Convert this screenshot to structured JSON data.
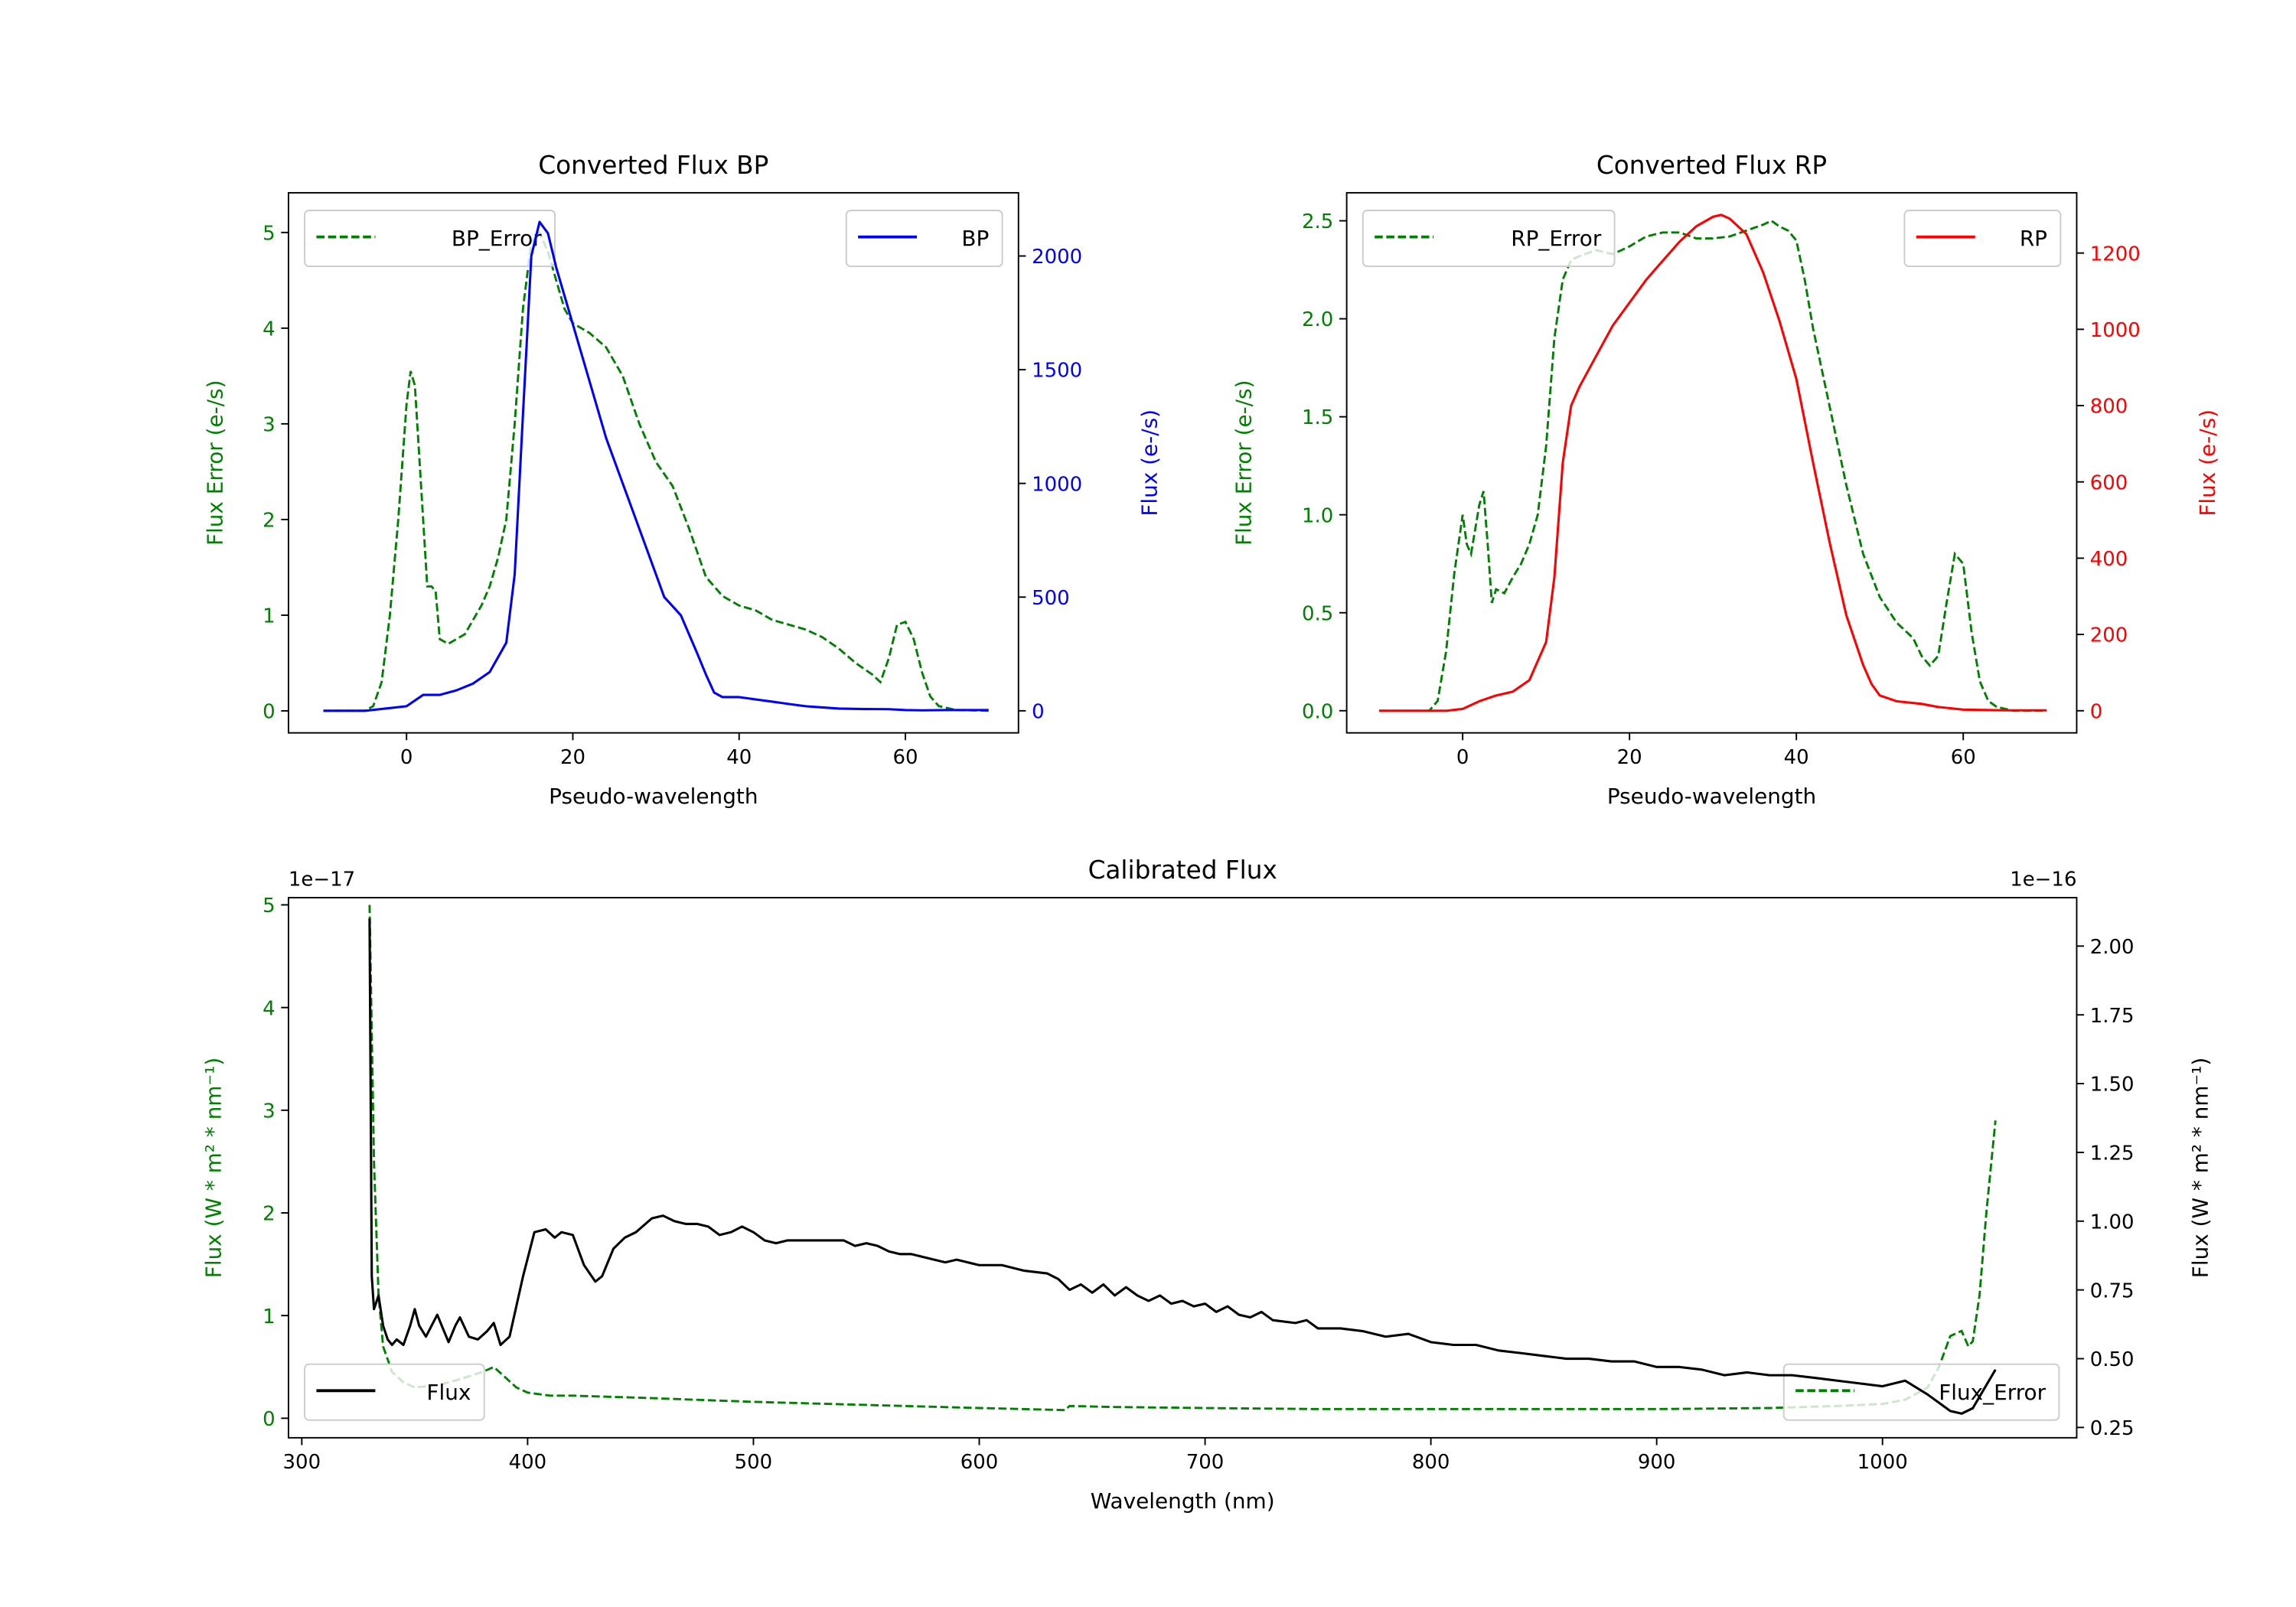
{
  "colors": {
    "error": "#008000",
    "bp": "#0000ff",
    "rp": "#ff0000",
    "flux": "#000000"
  },
  "chart_data": [
    {
      "id": "bp",
      "type": "line",
      "title": "Converted Flux BP",
      "xlabel": "Pseudo-wavelength",
      "ylabel_left": "Flux Error (e-/s)",
      "ylabel_right": "Flux (e-/s)",
      "xlim": [
        -14.2,
        73.6
      ],
      "ylim_left": [
        -0.23,
        5.415
      ],
      "ylim_right": [
        -97,
        2278
      ],
      "xticks": [
        "0",
        "20",
        "40",
        "60"
      ],
      "yticks_left": [
        "0",
        "1",
        "2",
        "3",
        "4",
        "5"
      ],
      "yticks_right": [
        "0",
        "500",
        "1000",
        "1500",
        "2000"
      ],
      "legend_left": {
        "label": "BP_Error",
        "placement": "upper left"
      },
      "legend_right": {
        "label": "BP",
        "placement": "upper right"
      },
      "series_left": {
        "name": "BP_Error",
        "style": "dashed",
        "x": [
          -10,
          -5,
          -4,
          -3,
          -2,
          -1,
          0,
          0.5,
          1,
          2,
          2.5,
          3,
          3.5,
          4,
          5,
          6,
          7,
          8,
          9,
          10,
          11,
          12,
          13,
          14,
          15,
          16,
          17,
          18,
          19,
          20,
          22,
          24,
          26,
          28,
          30,
          32,
          34,
          36,
          38,
          40,
          42,
          44,
          46,
          48,
          50,
          52,
          54,
          56,
          57,
          58,
          59,
          60,
          61,
          62,
          63,
          64,
          66,
          70
        ],
        "y": [
          0,
          0,
          0.05,
          0.3,
          1,
          2,
          3.2,
          3.55,
          3.4,
          2,
          1.3,
          1.3,
          1.25,
          0.75,
          0.7,
          0.75,
          0.8,
          0.95,
          1.1,
          1.3,
          1.6,
          2,
          3,
          4.2,
          4.9,
          5.0,
          4.8,
          4.5,
          4.2,
          4.05,
          3.95,
          3.8,
          3.5,
          3.0,
          2.6,
          2.35,
          1.9,
          1.4,
          1.2,
          1.1,
          1.05,
          0.95,
          0.9,
          0.85,
          0.77,
          0.65,
          0.5,
          0.38,
          0.3,
          0.55,
          0.9,
          0.93,
          0.75,
          0.4,
          0.15,
          0.05,
          0.01,
          0
        ]
      },
      "series_right": {
        "name": "BP",
        "style": "solid",
        "x": [
          -10,
          -5,
          0,
          2,
          4,
          6,
          8,
          10,
          12,
          13,
          14,
          15,
          16,
          17,
          18,
          20,
          22,
          24,
          26,
          28,
          30,
          31,
          33,
          35,
          36,
          37,
          38,
          40,
          42,
          44,
          46,
          48,
          50,
          52,
          55,
          58,
          60,
          62,
          65,
          70
        ],
        "y": [
          0,
          0,
          20,
          70,
          70,
          90,
          120,
          170,
          300,
          600,
          1300,
          2000,
          2150,
          2100,
          1950,
          1700,
          1450,
          1200,
          1000,
          800,
          600,
          500,
          420,
          250,
          160,
          80,
          60,
          60,
          50,
          40,
          30,
          20,
          15,
          10,
          8,
          7,
          3,
          2,
          3,
          3
        ]
      }
    },
    {
      "id": "rp",
      "type": "line",
      "title": "Converted Flux RP",
      "xlabel": "Pseudo-wavelength",
      "ylabel_left": "Flux Error (e-/s)",
      "ylabel_right": "Flux (e-/s)",
      "xlim": [
        -13.9,
        73.6
      ],
      "ylim_left": [
        -0.113,
        2.643
      ],
      "ylim_right": [
        -58,
        1358
      ],
      "xticks": [
        "0",
        "20",
        "40",
        "60"
      ],
      "yticks_left": [
        "0.0",
        "0.5",
        "1.0",
        "1.5",
        "2.0",
        "2.5"
      ],
      "yticks_right": [
        "0",
        "200",
        "400",
        "600",
        "800",
        "1000",
        "1200"
      ],
      "legend_left": {
        "label": "RP_Error",
        "placement": "upper left"
      },
      "legend_right": {
        "label": "RP",
        "placement": "upper right"
      },
      "series_left": {
        "name": "RP_Error",
        "style": "dashed",
        "x": [
          -10,
          -4,
          -3,
          -2,
          -1,
          0,
          0.5,
          1,
          2,
          2.5,
          3,
          3.5,
          4,
          5,
          6,
          7,
          8,
          9,
          10,
          11,
          12,
          13,
          14,
          16,
          18,
          20,
          22,
          24,
          26,
          28,
          30,
          32,
          34,
          36,
          37,
          38,
          39,
          40,
          41,
          42,
          44,
          46,
          48,
          50,
          52,
          54,
          55,
          56,
          57,
          58,
          59,
          60,
          61,
          62,
          63,
          64,
          66,
          70
        ],
        "y": [
          0,
          0,
          0.05,
          0.3,
          0.7,
          1.0,
          0.85,
          0.8,
          1.05,
          1.12,
          0.85,
          0.55,
          0.62,
          0.6,
          0.68,
          0.75,
          0.85,
          1.0,
          1.35,
          1.9,
          2.2,
          2.3,
          2.32,
          2.35,
          2.33,
          2.37,
          2.42,
          2.44,
          2.44,
          2.41,
          2.41,
          2.42,
          2.45,
          2.48,
          2.5,
          2.47,
          2.45,
          2.4,
          2.2,
          1.95,
          1.55,
          1.15,
          0.8,
          0.58,
          0.45,
          0.37,
          0.28,
          0.23,
          0.28,
          0.55,
          0.8,
          0.75,
          0.4,
          0.15,
          0.05,
          0.02,
          0,
          0
        ]
      },
      "series_right": {
        "name": "RP",
        "style": "solid",
        "x": [
          -10,
          -2,
          0,
          2,
          4,
          6,
          8,
          10,
          11,
          12,
          13,
          14,
          16,
          18,
          20,
          22,
          24,
          26,
          28,
          30,
          31,
          32,
          34,
          36,
          38,
          40,
          42,
          44,
          46,
          48,
          49,
          50,
          52,
          55,
          57,
          60,
          65,
          70
        ],
        "y": [
          0,
          0,
          5,
          25,
          40,
          50,
          80,
          180,
          350,
          650,
          800,
          850,
          930,
          1010,
          1070,
          1130,
          1180,
          1230,
          1270,
          1295,
          1300,
          1290,
          1250,
          1150,
          1020,
          870,
          650,
          440,
          250,
          120,
          70,
          40,
          25,
          18,
          10,
          3,
          1,
          1
        ]
      }
    },
    {
      "id": "cal",
      "type": "line",
      "title": "Calibrated Flux",
      "xlabel": "Wavelength (nm)",
      "ylabel_left": "Flux (W * m² * nm⁻¹)",
      "ylabel_right": "Flux (W * m² * nm⁻¹)",
      "offset_left": "1e−17",
      "offset_right": "1e−16",
      "xlim": [
        294.1,
        1086
      ],
      "ylim_left": [
        -0.19,
        5.07
      ],
      "ylim_right": [
        0.2125,
        2.176
      ],
      "xticks": [
        "300",
        "400",
        "500",
        "600",
        "700",
        "800",
        "900",
        "1000"
      ],
      "yticks_left": [
        "0",
        "1",
        "2",
        "3",
        "4",
        "5"
      ],
      "yticks_right": [
        "0.25",
        "0.50",
        "0.75",
        "1.00",
        "1.25",
        "1.50",
        "1.75",
        "2.00"
      ],
      "legend_left": {
        "label": "Flux_Error",
        "placement": "lower right"
      },
      "legend_right": {
        "label": "Flux",
        "placement": "lower left"
      },
      "series_left": {
        "name": "Flux_Error",
        "style": "dashed",
        "x": [
          330,
          332,
          334,
          336,
          340,
          345,
          350,
          360,
          370,
          380,
          385,
          390,
          395,
          400,
          410,
          420,
          450,
          500,
          550,
          600,
          638,
          640,
          660,
          700,
          750,
          800,
          900,
          950,
          980,
          1000,
          1010,
          1020,
          1025,
          1030,
          1035,
          1038,
          1040,
          1043,
          1046,
          1050
        ],
        "y": [
          5.0,
          2.5,
          1.2,
          0.7,
          0.45,
          0.35,
          0.3,
          0.32,
          0.38,
          0.45,
          0.5,
          0.4,
          0.3,
          0.25,
          0.22,
          0.22,
          0.2,
          0.16,
          0.13,
          0.1,
          0.08,
          0.12,
          0.11,
          0.1,
          0.09,
          0.09,
          0.09,
          0.1,
          0.12,
          0.14,
          0.18,
          0.3,
          0.5,
          0.8,
          0.85,
          0.7,
          0.75,
          1.2,
          2.0,
          2.9
        ]
      },
      "series_right": {
        "name": "Flux",
        "style": "solid",
        "x": [
          330,
          331,
          332,
          334,
          336,
          338,
          340,
          342,
          345,
          348,
          350,
          352,
          355,
          360,
          363,
          365,
          368,
          370,
          374,
          378,
          382,
          385,
          388,
          392,
          398,
          403,
          408,
          412,
          415,
          420,
          425,
          430,
          433,
          438,
          443,
          448,
          455,
          460,
          465,
          470,
          475,
          480,
          485,
          490,
          495,
          500,
          505,
          510,
          515,
          520,
          530,
          540,
          545,
          550,
          555,
          560,
          565,
          570,
          575,
          580,
          585,
          590,
          600,
          610,
          620,
          630,
          635,
          640,
          645,
          650,
          655,
          660,
          665,
          670,
          675,
          680,
          685,
          690,
          695,
          700,
          705,
          710,
          715,
          720,
          725,
          730,
          740,
          745,
          750,
          760,
          770,
          780,
          790,
          800,
          810,
          820,
          830,
          840,
          850,
          860,
          870,
          880,
          890,
          900,
          910,
          920,
          930,
          940,
          950,
          960,
          970,
          980,
          990,
          1000,
          1010,
          1020,
          1030,
          1035,
          1040,
          1050
        ],
        "y": [
          2.1,
          0.8,
          0.68,
          0.73,
          0.62,
          0.57,
          0.55,
          0.57,
          0.55,
          0.62,
          0.68,
          0.62,
          0.58,
          0.66,
          0.6,
          0.56,
          0.62,
          0.65,
          0.58,
          0.57,
          0.6,
          0.63,
          0.55,
          0.58,
          0.8,
          0.96,
          0.97,
          0.94,
          0.96,
          0.95,
          0.84,
          0.78,
          0.8,
          0.9,
          0.94,
          0.96,
          1.01,
          1.02,
          1.0,
          0.99,
          0.99,
          0.98,
          0.95,
          0.96,
          0.98,
          0.96,
          0.93,
          0.92,
          0.93,
          0.93,
          0.93,
          0.93,
          0.91,
          0.92,
          0.91,
          0.89,
          0.88,
          0.88,
          0.87,
          0.86,
          0.85,
          0.86,
          0.84,
          0.84,
          0.82,
          0.81,
          0.79,
          0.75,
          0.77,
          0.74,
          0.77,
          0.73,
          0.76,
          0.73,
          0.71,
          0.73,
          0.7,
          0.71,
          0.69,
          0.7,
          0.67,
          0.69,
          0.66,
          0.65,
          0.67,
          0.64,
          0.63,
          0.64,
          0.61,
          0.61,
          0.6,
          0.58,
          0.59,
          0.56,
          0.55,
          0.55,
          0.53,
          0.52,
          0.51,
          0.5,
          0.5,
          0.49,
          0.49,
          0.47,
          0.47,
          0.46,
          0.44,
          0.45,
          0.44,
          0.44,
          0.43,
          0.42,
          0.41,
          0.4,
          0.42,
          0.37,
          0.31,
          0.3,
          0.32,
          0.46
        ]
      }
    }
  ]
}
